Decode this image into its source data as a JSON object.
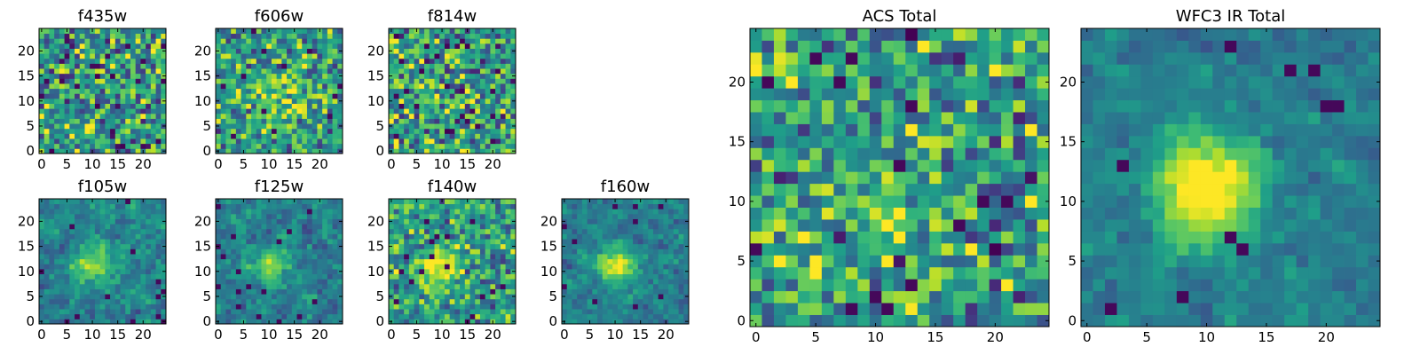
{
  "chart_data": [
    {
      "type": "heatmap",
      "title": "f435w",
      "grid_size": 25,
      "xticks": [
        0,
        5,
        10,
        15,
        20
      ],
      "yticks": [
        0,
        5,
        10,
        15,
        20
      ],
      "colormap": "viridis",
      "noise": 0.55,
      "source_peak": {
        "x": 10,
        "y": 11,
        "amp": 0.0,
        "sigma": 3
      },
      "seed": 11
    },
    {
      "type": "heatmap",
      "title": "f606w",
      "grid_size": 25,
      "xticks": [
        0,
        5,
        10,
        15,
        20
      ],
      "yticks": [
        0,
        5,
        10,
        15,
        20
      ],
      "colormap": "viridis",
      "noise": 0.45,
      "source_peak": {
        "x": 12,
        "y": 11,
        "amp": 0.25,
        "sigma": 4
      },
      "seed": 23
    },
    {
      "type": "heatmap",
      "title": "f814w",
      "grid_size": 25,
      "xticks": [
        0,
        5,
        10,
        15,
        20
      ],
      "yticks": [
        0,
        5,
        10,
        15,
        20
      ],
      "colormap": "viridis",
      "noise": 0.55,
      "source_peak": {
        "x": 11,
        "y": 11,
        "amp": 0.1,
        "sigma": 3
      },
      "seed": 37
    },
    {
      "type": "heatmap",
      "title": "f105w",
      "grid_size": 25,
      "xticks": [
        0,
        5,
        10,
        15,
        20
      ],
      "yticks": [
        0,
        5,
        10,
        15,
        20
      ],
      "colormap": "viridis",
      "noise": 0.35,
      "source_peak": {
        "x": 10,
        "y": 11,
        "amp": 0.4,
        "sigma": 3
      },
      "seed": 41
    },
    {
      "type": "heatmap",
      "title": "f125w",
      "grid_size": 25,
      "xticks": [
        0,
        5,
        10,
        15,
        20
      ],
      "yticks": [
        0,
        5,
        10,
        15,
        20
      ],
      "colormap": "viridis",
      "noise": 0.35,
      "source_peak": {
        "x": 10,
        "y": 11,
        "amp": 0.4,
        "sigma": 2.5
      },
      "seed": 53
    },
    {
      "type": "heatmap",
      "title": "f140w",
      "grid_size": 25,
      "xticks": [
        0,
        5,
        10,
        15,
        20
      ],
      "yticks": [
        0,
        5,
        10,
        15,
        20
      ],
      "colormap": "viridis",
      "noise": 0.4,
      "source_peak": {
        "x": 10,
        "y": 11,
        "amp": 0.4,
        "sigma": 3
      },
      "seed": 67
    },
    {
      "type": "heatmap",
      "title": "f160w",
      "grid_size": 25,
      "xticks": [
        0,
        5,
        10,
        15,
        20
      ],
      "yticks": [
        0,
        5,
        10,
        15,
        20
      ],
      "colormap": "viridis",
      "noise": 0.3,
      "source_peak": {
        "x": 10,
        "y": 11,
        "amp": 0.6,
        "sigma": 2.5
      },
      "seed": 79
    },
    {
      "type": "heatmap",
      "title": "ACS Total",
      "grid_size": 25,
      "xticks": [
        0,
        5,
        10,
        15,
        20
      ],
      "yticks": [
        0,
        5,
        10,
        15,
        20
      ],
      "colormap": "viridis",
      "noise": 0.5,
      "source_peak": {
        "x": 11,
        "y": 11,
        "amp": 0.2,
        "sigma": 3
      },
      "seed": 97
    },
    {
      "type": "heatmap",
      "title": "WFC3 IR Total",
      "grid_size": 25,
      "xticks": [
        0,
        5,
        10,
        15,
        20
      ],
      "yticks": [
        0,
        5,
        10,
        15,
        20
      ],
      "colormap": "viridis",
      "noise": 0.25,
      "source_peak": {
        "x": 10,
        "y": 11,
        "amp": 0.7,
        "sigma": 3
      },
      "seed": 101
    }
  ]
}
